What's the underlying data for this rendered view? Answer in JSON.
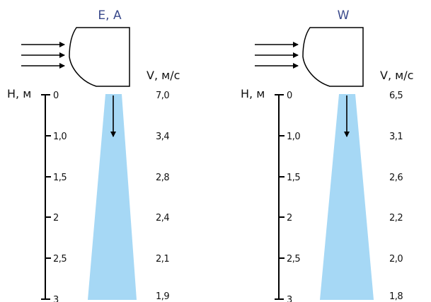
{
  "panels": [
    {
      "title": "E, A",
      "height_label": "H, м",
      "velocity_label": "V, м/с",
      "heights": [
        "0",
        "1,0",
        "1,5",
        "2",
        "2,5",
        "3"
      ],
      "velocities": [
        "7,0",
        "3,4",
        "2,8",
        "2,4",
        "2,1",
        "1,9"
      ]
    },
    {
      "title": "W",
      "height_label": "H, м",
      "velocity_label": "V, м/с",
      "heights": [
        "0",
        "1,0",
        "1,5",
        "2",
        "2,5",
        "3"
      ],
      "velocities": [
        "6,5",
        "3,1",
        "2,6",
        "2,2",
        "2,0",
        "1,8"
      ]
    }
  ],
  "colors": {
    "jet": "#a6d8f5",
    "title": "#3a4a8c",
    "line": "#000000"
  }
}
